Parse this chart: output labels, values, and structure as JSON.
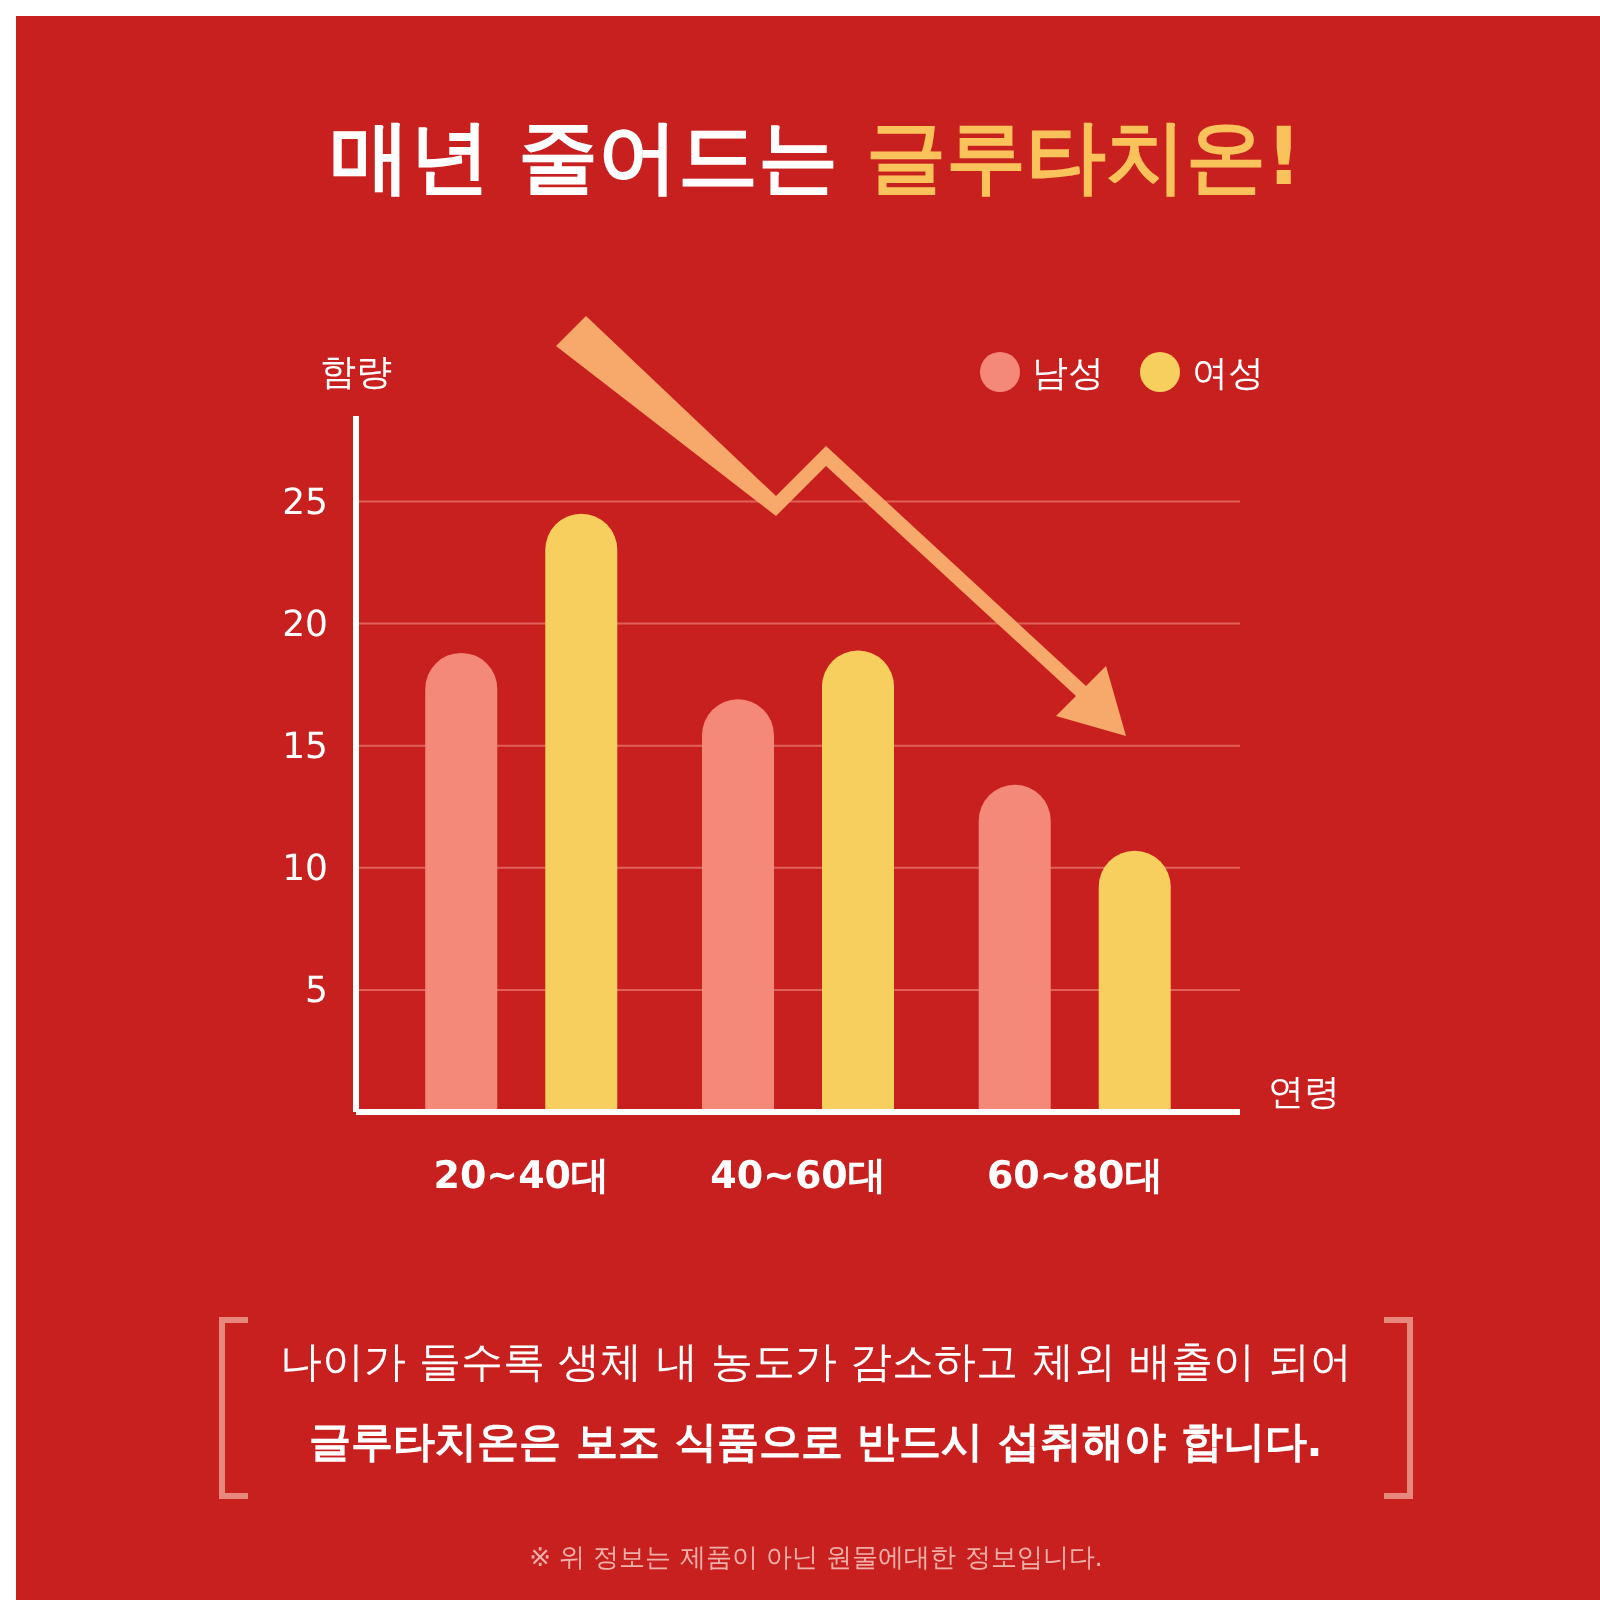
{
  "chart_data": {
    "type": "bar",
    "title": "매년 줄어드는 글루타치온!",
    "ylabel": "함량",
    "xlabel": "연령",
    "categories": [
      "20~40대",
      "40~60대",
      "60~80대"
    ],
    "series": [
      {
        "name": "남성",
        "color": "#f4897a",
        "values": [
          18.8,
          16.9,
          13.4
        ]
      },
      {
        "name": "여성",
        "color": "#f7cf5f",
        "values": [
          24.5,
          18.9,
          10.7
        ]
      }
    ],
    "ylim": [
      0,
      28.5
    ],
    "yticks": [
      5,
      10,
      15,
      20,
      25
    ],
    "grid": "y",
    "legend": "top right",
    "annotations": [
      "나이가 들수록 생체 내 농도가 감소하고 체외 배출이 되어",
      "글루타치온은 보조 식품으로 반드시 섭취해야 합니다.",
      "※ 위 정보는 제품이 아닌 원물에대한 정보입니다."
    ]
  }
}
